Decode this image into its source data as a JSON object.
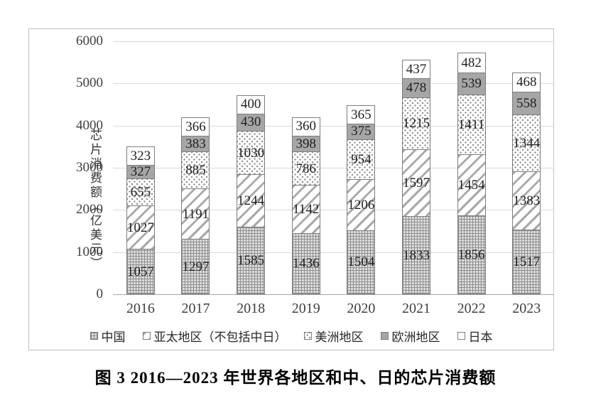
{
  "figure": {
    "caption": "图 3  2016—2023 年世界各地区和中、日的芯片消费额"
  },
  "chart_data": {
    "type": "bar",
    "stacked": true,
    "title": "",
    "xlabel": "",
    "ylabel": "芯片消费额（亿美元）",
    "x": [
      "2016",
      "2017",
      "2018",
      "2019",
      "2020",
      "2021",
      "2022",
      "2023"
    ],
    "y_axis": {
      "title": "芯片消费额（亿美元）",
      "min": 0,
      "max": 6000,
      "tick_step": 1000,
      "ticks": [
        0,
        1000,
        2000,
        3000,
        4000,
        5000,
        6000
      ]
    },
    "grid": true,
    "legend_position": "bottom",
    "series": [
      {
        "name": "中国",
        "pattern": "grid",
        "values": [
          1057,
          1297,
          1585,
          1436,
          1504,
          1833,
          1856,
          1517
        ]
      },
      {
        "name": "亚太地区（不包括中日）",
        "pattern": "diag",
        "values": [
          1027,
          1191,
          1244,
          1142,
          1206,
          1597,
          1454,
          1383
        ]
      },
      {
        "name": "美洲地区",
        "pattern": "dots",
        "values": [
          655,
          885,
          1030,
          786,
          954,
          1215,
          1411,
          1344
        ]
      },
      {
        "name": "欧洲地区",
        "pattern": "solid",
        "values": [
          327,
          383,
          430,
          398,
          375,
          478,
          539,
          558
        ]
      },
      {
        "name": "日本",
        "pattern": "plain",
        "values": [
          323,
          366,
          400,
          360,
          365,
          437,
          482,
          468
        ]
      }
    ],
    "colors": {
      "pattern_ink": "#8c8c8c",
      "solid_gray": "#a6a6a6",
      "grid_line": "#d9d9d9",
      "axis_text": "#3f3f3f",
      "label_text": "#1f1f1f",
      "border": "#7d7d7d"
    }
  }
}
